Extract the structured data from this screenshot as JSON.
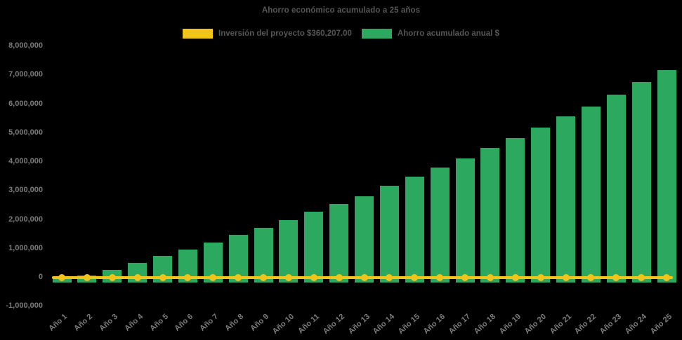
{
  "page": {
    "background": "#000000"
  },
  "chart_data": {
    "type": "bar",
    "title": "Ahorro económico acumulado a 25 años",
    "xlabel": "",
    "ylabel": "",
    "categories": [
      "Año 1",
      "Año 2",
      "Año 3",
      "Año 4",
      "Año 5",
      "Año 6",
      "Año 7",
      "Año 8",
      "Año 9",
      "Año 10",
      "Año 11",
      "Año 12",
      "Año 13",
      "Año 14",
      "Año 15",
      "Año 16",
      "Año 17",
      "Año 18",
      "Año 19",
      "Año 20",
      "Año 21",
      "Año 22",
      "Año 23",
      "Año 24",
      "Año 25"
    ],
    "series": [
      {
        "name": "Inversión del proyecto $360,207.00",
        "type": "line",
        "marker": "circle",
        "color": "#F0C419",
        "values": [
          -30000,
          -30000,
          -30000,
          -30000,
          -30000,
          -30000,
          -30000,
          -30000,
          -30000,
          -30000,
          -30000,
          -30000,
          -30000,
          -30000,
          -30000,
          -30000,
          -30000,
          -30000,
          -30000,
          -30000,
          -30000,
          -30000,
          -30000,
          -30000,
          -30000
        ]
      },
      {
        "name": "Ahorro acumulado anual $",
        "type": "bar",
        "color": "#2CA95F",
        "bar_base_value": -190000,
        "values": [
          -50000,
          40000,
          240000,
          480000,
          720000,
          950000,
          1200000,
          1450000,
          1700000,
          1960000,
          2250000,
          2520000,
          2800000,
          3140000,
          3460000,
          3790000,
          4100000,
          4450000,
          4800000,
          5170000,
          5560000,
          5900000,
          6300000,
          6740000,
          7150000
        ]
      }
    ],
    "ylim": [
      -1000000,
      8000000
    ],
    "ytick_interval": 1000000,
    "grid": false,
    "legend_position": "top",
    "background": "#000000",
    "text_colors": {
      "title": "#555555",
      "legend": "#555555",
      "axis": "#7C7C7C"
    }
  }
}
